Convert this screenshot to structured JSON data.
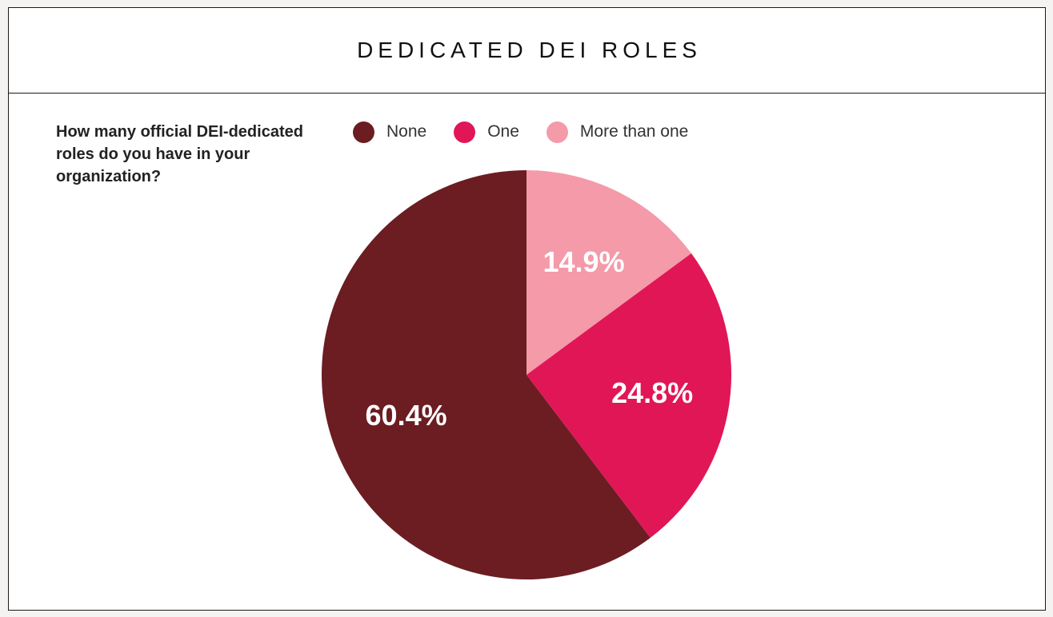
{
  "title": "DEDICATED DEI ROLES",
  "chart_data": {
    "type": "pie",
    "title": "DEDICATED DEI ROLES",
    "subtitle": "How many official DEI-dedicated roles do you have in your organization?",
    "legend_position": "top",
    "slices": [
      {
        "name": "More than one",
        "value": 14.9,
        "label": "14.9%",
        "color": "#f49aa9"
      },
      {
        "name": "One",
        "value": 24.8,
        "label": "24.8%",
        "color": "#e11656"
      },
      {
        "name": "None",
        "value": 60.4,
        "label": "60.4%",
        "color": "#6b1d22"
      }
    ],
    "legend": [
      {
        "name": "None",
        "color": "#6b1d22"
      },
      {
        "name": "One",
        "color": "#e11656"
      },
      {
        "name": "More than one",
        "color": "#f49aa9"
      }
    ]
  }
}
